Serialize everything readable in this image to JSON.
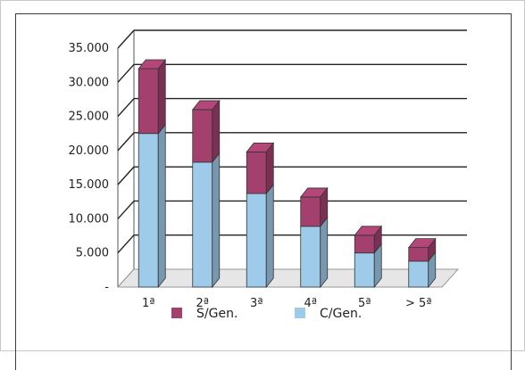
{
  "chart_data": {
    "type": "bar",
    "stacked": true,
    "categories": [
      "1ª",
      "2ª",
      "3ª",
      "4ª",
      "5ª",
      "> 5ª"
    ],
    "series": [
      {
        "name": "C/Gen.",
        "values": [
          22500,
          18300,
          13700,
          8900,
          5000,
          3800
        ],
        "color": "#9ecbe9"
      },
      {
        "name": "S/Gen.",
        "values": [
          9500,
          7700,
          6100,
          4300,
          2600,
          2000
        ],
        "color": "#a4406e"
      }
    ],
    "y_tick_labels": [
      "-",
      "5.000",
      "10.000",
      "15.000",
      "20.000",
      "25.000",
      "30.000",
      "35.000"
    ],
    "y_tick_values": [
      0,
      5000,
      10000,
      15000,
      20000,
      25000,
      30000,
      35000
    ],
    "ylim": [
      0,
      35000
    ],
    "grid": true,
    "legend_position": "bottom",
    "legend": [
      {
        "label": "S/Gen.",
        "color": "#a4406e"
      },
      {
        "label": "C/Gen.",
        "color": "#9ecbe9"
      }
    ]
  }
}
